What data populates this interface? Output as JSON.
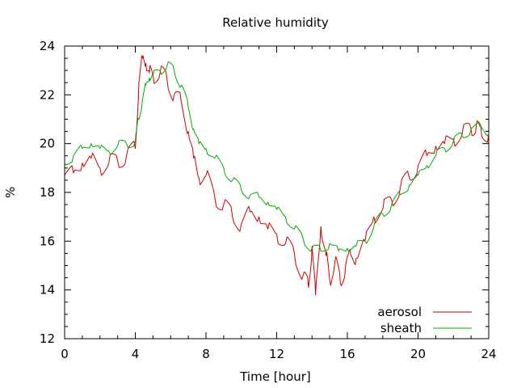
{
  "chart_data": {
    "type": "line",
    "title": "Relative humidity",
    "xlabel": "Time [hour]",
    "ylabel": "%",
    "xlim": [
      0,
      24
    ],
    "ylim": [
      12,
      24
    ],
    "xticks": [
      0,
      4,
      8,
      12,
      16,
      20,
      24
    ],
    "yticks": [
      12,
      14,
      16,
      18,
      20,
      22,
      24
    ],
    "grid": false,
    "legend_position": "bottom-right",
    "series": [
      {
        "name": "aerosol",
        "color": "#cc0000",
        "x": [
          0.0,
          0.5,
          1.0,
          1.5,
          2.0,
          2.5,
          3.0,
          3.5,
          4.0,
          4.2,
          4.4,
          4.6,
          4.8,
          5.0,
          5.4,
          5.8,
          6.2,
          6.6,
          7.0,
          7.3,
          7.6,
          8.0,
          8.5,
          9.0,
          9.5,
          10.0,
          10.5,
          11.0,
          11.5,
          12.0,
          12.5,
          13.0,
          13.5,
          13.8,
          14.0,
          14.2,
          14.5,
          14.8,
          15.0,
          15.3,
          15.6,
          15.9,
          16.2,
          16.5,
          17.0,
          17.5,
          18.0,
          18.5,
          19.0,
          19.5,
          20.0,
          20.5,
          21.0,
          21.5,
          22.0,
          22.5,
          23.0,
          23.3,
          23.6,
          24.0
        ],
        "values": [
          18.7,
          18.8,
          19.2,
          19.4,
          19.0,
          19.2,
          19.3,
          19.5,
          19.8,
          22.5,
          23.5,
          23.3,
          22.9,
          22.8,
          22.9,
          22.6,
          22.0,
          21.7,
          20.5,
          19.4,
          18.6,
          18.7,
          17.8,
          17.5,
          17.0,
          16.7,
          17.2,
          17.0,
          16.5,
          16.3,
          15.9,
          15.5,
          14.6,
          14.1,
          15.8,
          13.8,
          16.6,
          15.4,
          14.4,
          15.2,
          14.3,
          15.0,
          15.4,
          15.3,
          16.0,
          17.0,
          17.3,
          17.7,
          18.2,
          18.6,
          19.1,
          19.5,
          19.9,
          20.0,
          20.2,
          20.4,
          20.6,
          20.8,
          20.3,
          20.4
        ]
      },
      {
        "name": "sheath",
        "color": "#00aa00",
        "x": [
          0.0,
          0.5,
          1.0,
          1.5,
          2.0,
          2.5,
          3.0,
          3.5,
          4.0,
          4.2,
          4.4,
          4.6,
          4.8,
          5.0,
          5.4,
          5.8,
          6.2,
          6.6,
          7.0,
          7.3,
          7.6,
          8.0,
          8.5,
          9.0,
          9.5,
          10.0,
          10.5,
          11.0,
          11.5,
          12.0,
          12.5,
          13.0,
          13.5,
          14.0,
          14.5,
          15.0,
          15.5,
          16.0,
          16.5,
          17.0,
          17.5,
          18.0,
          18.5,
          19.0,
          19.5,
          20.0,
          20.5,
          21.0,
          21.5,
          22.0,
          22.5,
          23.0,
          23.5,
          24.0
        ],
        "values": [
          19.2,
          19.5,
          19.8,
          20.0,
          19.8,
          19.7,
          19.9,
          20.0,
          20.1,
          21.0,
          21.8,
          22.4,
          22.7,
          22.8,
          23.0,
          23.2,
          23.0,
          22.4,
          21.5,
          20.6,
          20.0,
          19.8,
          19.4,
          19.0,
          18.5,
          18.1,
          17.9,
          17.8,
          17.6,
          17.3,
          17.0,
          16.5,
          16.1,
          15.7,
          15.6,
          15.9,
          15.6,
          15.7,
          15.8,
          16.0,
          16.6,
          17.1,
          17.5,
          17.9,
          18.3,
          18.7,
          19.1,
          19.5,
          19.8,
          20.1,
          20.3,
          20.6,
          20.7,
          20.4
        ]
      }
    ]
  }
}
